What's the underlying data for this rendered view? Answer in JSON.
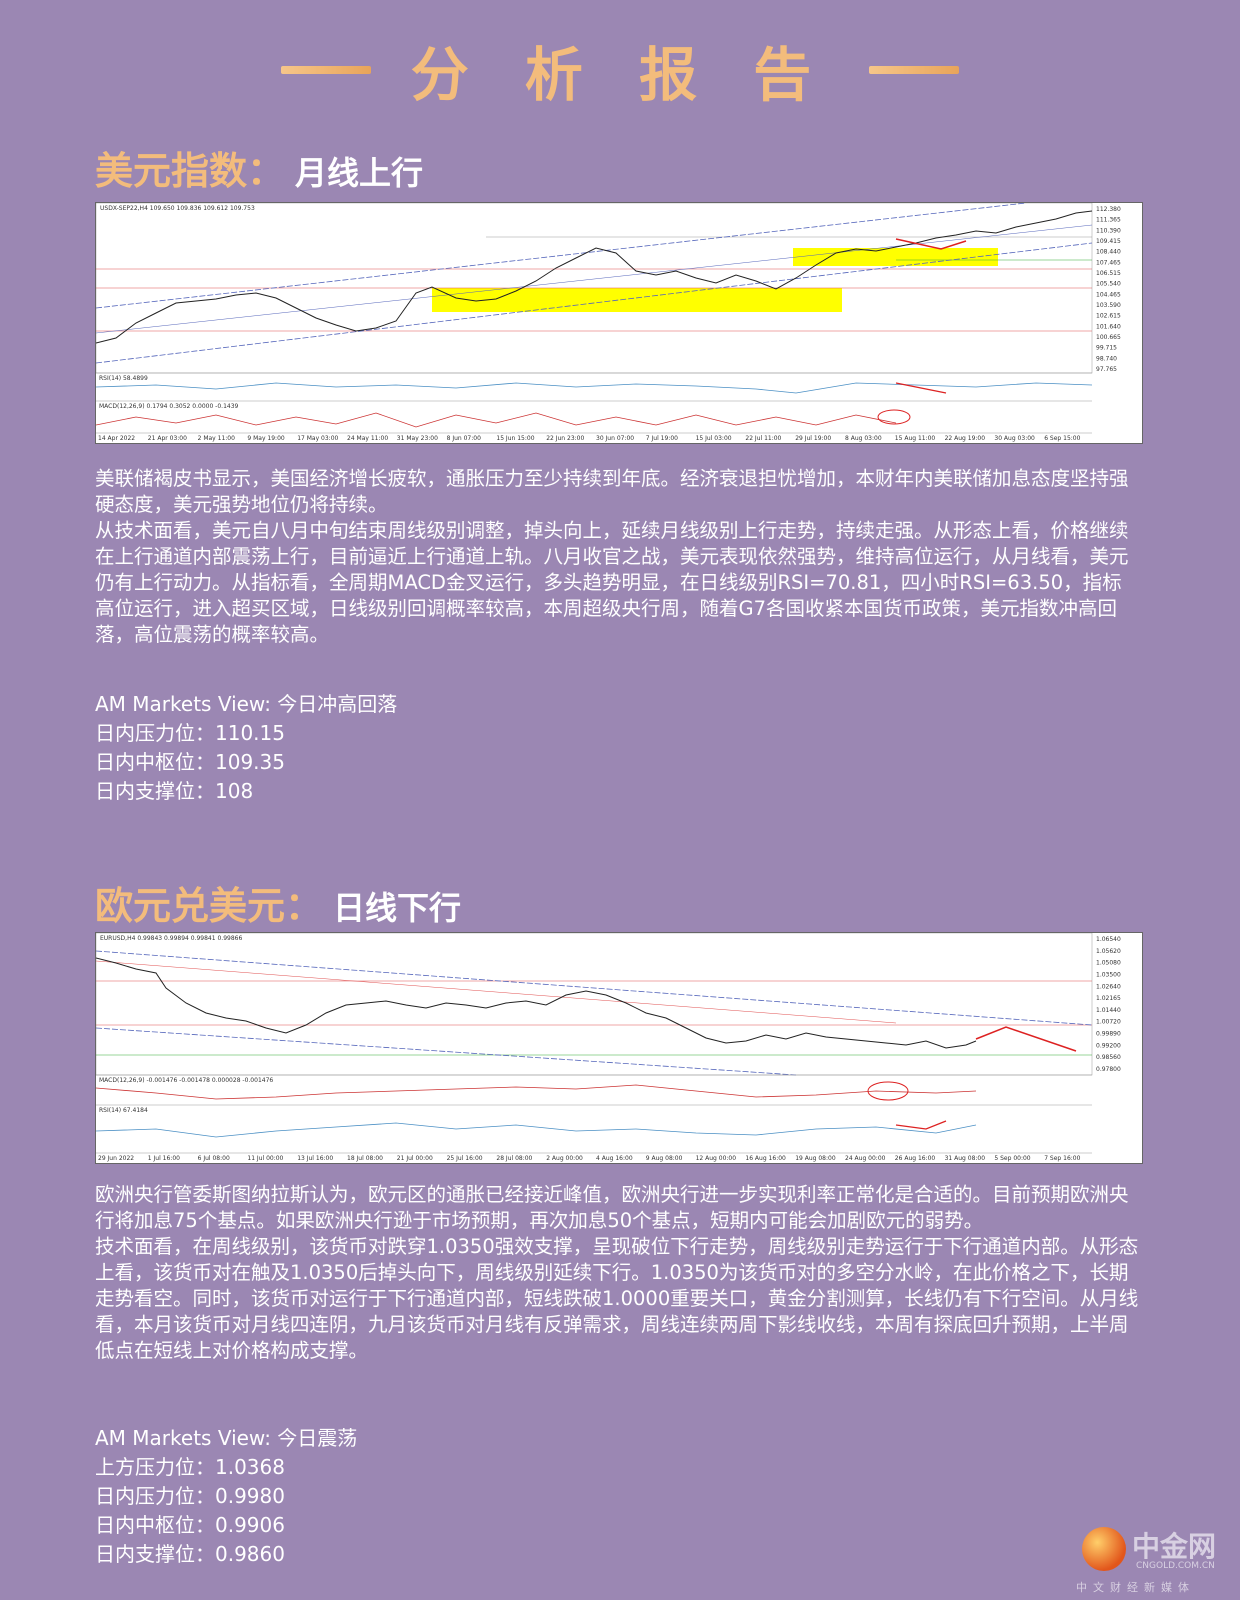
{
  "header": {
    "title": "分 析 报 告"
  },
  "section1": {
    "name": "美元指数：",
    "subtitle": "月线上行",
    "chart_header": "USDX-SEP22,H4  109.650 109.836 109.612 109.753",
    "rsi_label": "RSI(14) 58.4899",
    "macd_label": "MACD(12,26,9) 0.1794 0.3052 0.0000 -0.1439",
    "price_ticks": [
      "112.380",
      "111.365",
      "110.390",
      "109.415",
      "108.440",
      "107.465",
      "106.515",
      "105.540",
      "104.465",
      "103.590",
      "102.615",
      "101.640",
      "100.665",
      "99.715",
      "98.740",
      "97.765"
    ],
    "date_ticks": [
      "14 Apr 2022",
      "21 Apr 03:00",
      "2 May 11:00",
      "9 May 19:00",
      "17 May 03:00",
      "24 May 11:00",
      "31 May 23:00",
      "8 Jun 07:00",
      "15 Jun 15:00",
      "22 Jun 23:00",
      "30 Jun 07:00",
      "7 Jul 19:00",
      "15 Jul 03:00",
      "22 Jul 11:00",
      "29 Jul 19:00",
      "8 Aug 03:00",
      "15 Aug 11:00",
      "22 Aug 19:00",
      "30 Aug 03:00",
      "6 Sep 15:00"
    ],
    "paragraph1": "美联储褐皮书显示，美国经济增长疲软，通胀压力至少持续到年底。经济衰退担忧增加，本财年内美联储加息态度坚持强硬态度，美元强势地位仍将持续。",
    "paragraph2": "从技术面看，美元自八月中旬结束周线级别调整，掉头向上，延续月线级别上行走势，持续走强。从形态上看，价格继续在上行通道内部震荡上行，目前逼近上行通道上轨。八月收官之战，美元表现依然强势，维持高位运行，从月线看，美元仍有上行动力。从指标看，全周期MACD金叉运行，多头趋势明显，在日线级别RSI=70.81，四小时RSI=63.50，指标高位运行，进入超买区域，日线级别回调概率较高，本周超级央行周，随着G7各国收紧本国货币政策，美元指数冲高回落，高位震荡的概率较高。",
    "view": "AM Markets View: 今日冲高回落",
    "levels": [
      "日内压力位：110.15",
      "日内中枢位：109.35",
      "日内支撑位：108"
    ]
  },
  "section2": {
    "name": "欧元兑美元：",
    "subtitle": "日线下行",
    "chart_header": "EURUSD,H4  0.99843 0.99894 0.99841 0.99866",
    "macd_label": "MACD(12,26,9) -0.001476 -0.001478 0.000028 -0.001476",
    "rsi_label": "RSI(14) 67.4184",
    "price_ticks": [
      "1.06540",
      "1.05620",
      "1.05080",
      "1.03500",
      "1.02640",
      "1.02165",
      "1.01440",
      "1.00720",
      "0.99890",
      "0.99200",
      "0.98560",
      "0.97800"
    ],
    "date_ticks": [
      "29 Jun 2022",
      "1 Jul 16:00",
      "6 Jul 08:00",
      "11 Jul 00:00",
      "13 Jul 16:00",
      "18 Jul 08:00",
      "21 Jul 00:00",
      "25 Jul 16:00",
      "28 Jul 08:00",
      "2 Aug 00:00",
      "4 Aug 16:00",
      "9 Aug 08:00",
      "12 Aug 00:00",
      "16 Aug 16:00",
      "19 Aug 08:00",
      "24 Aug 00:00",
      "26 Aug 16:00",
      "31 Aug 08:00",
      "5 Sep 00:00",
      "7 Sep 16:00"
    ],
    "paragraph1": "欧洲央行管委斯图纳拉斯认为，欧元区的通胀已经接近峰值，欧洲央行进一步实现利率正常化是合适的。目前预期欧洲央行将加息75个基点。如果欧洲央行逊于市场预期，再次加息50个基点，短期内可能会加剧欧元的弱势。",
    "paragraph2": "技术面看，在周线级别，该货币对跌穿1.0350强效支撑，呈现破位下行走势，周线级别走势运行于下行通道内部。从形态上看，该货币对在触及1.0350后掉头向下，周线级别延续下行。1.0350为该货币对的多空分水岭，在此价格之下，长期走势看空。同时，该货币对运行于下行通道内部，短线跌破1.0000重要关口，黄金分割测算，长线仍有下行空间。从月线看，本月该货币对月线四连阴，九月该货币对月线有反弹需求，周线连续两周下影线收线，本周有探底回升预期，上半周低点在短线上对价格构成支撑。",
    "view": "AM Markets View: 今日震荡",
    "levels": [
      "上方压力位：1.0368",
      "日内压力位：0.9980",
      "日内中枢位：0.9906",
      "日内支撑位：0.9860"
    ]
  },
  "logo": {
    "name": "中金网",
    "domain": "CNGOLD.COM.CN",
    "slogan": "中文财经新媒体"
  },
  "colors": {
    "background": "#9b87b3",
    "accent": "#f3bc7c",
    "highlight": "#ffff00"
  }
}
